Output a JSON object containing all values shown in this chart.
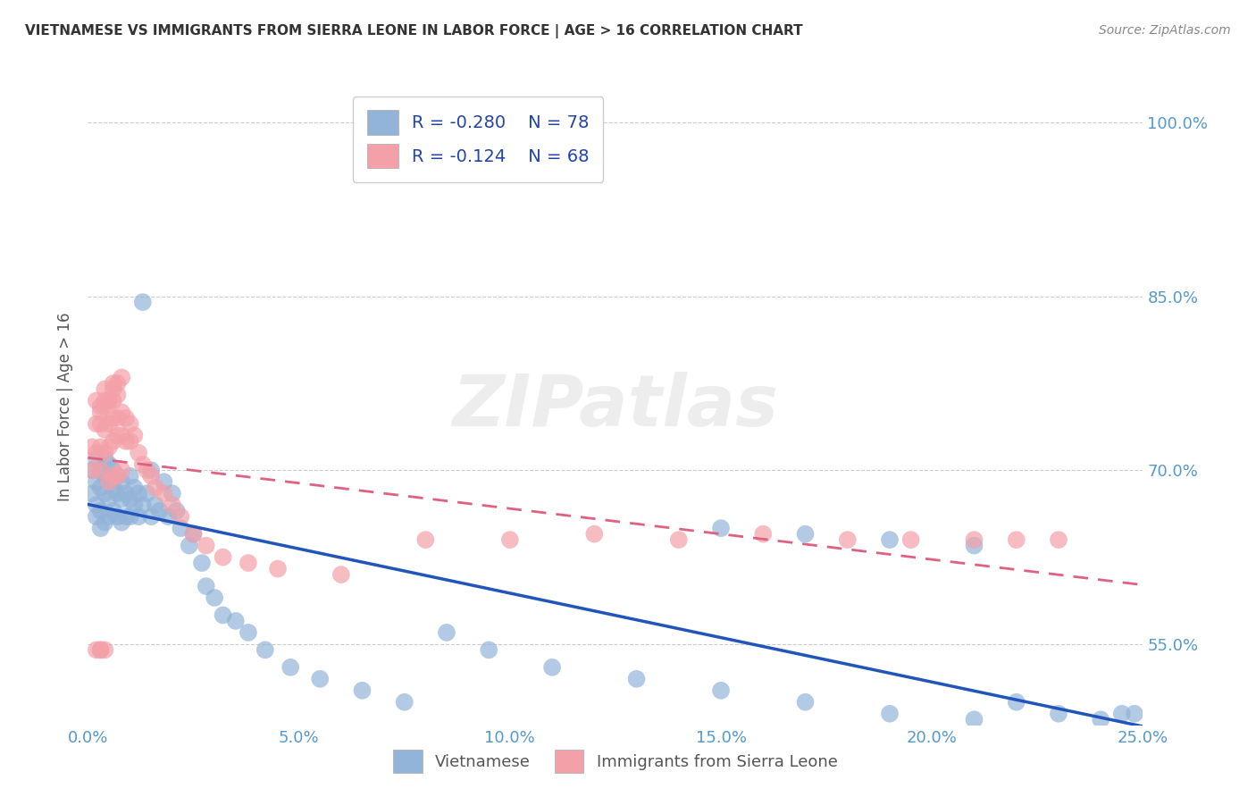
{
  "title": "VIETNAMESE VS IMMIGRANTS FROM SIERRA LEONE IN LABOR FORCE | AGE > 16 CORRELATION CHART",
  "source": "Source: ZipAtlas.com",
  "ylabel_label": "In Labor Force | Age > 16",
  "xlim": [
    0.0,
    0.25
  ],
  "ylim": [
    0.48,
    1.03
  ],
  "xtick_vals": [
    0.0,
    0.05,
    0.1,
    0.15,
    0.2,
    0.25
  ],
  "xtick_labels": [
    "0.0%",
    "5.0%",
    "10.0%",
    "15.0%",
    "20.0%",
    "25.0%"
  ],
  "ytick_vals": [
    0.55,
    0.7,
    0.85,
    1.0
  ],
  "ytick_labels": [
    "55.0%",
    "70.0%",
    "85.0%",
    "100.0%"
  ],
  "legend_blue_label": "Vietnamese",
  "legend_pink_label": "Immigrants from Sierra Leone",
  "R_blue": -0.28,
  "N_blue": 78,
  "R_pink": -0.124,
  "N_pink": 68,
  "blue_color": "#92B4D8",
  "pink_color": "#F4A0A8",
  "blue_line_color": "#2255BB",
  "pink_line_color": "#E06080",
  "tick_color": "#5599CC",
  "watermark": "ZIPatlas",
  "blue_scatter_x": [
    0.001,
    0.001,
    0.002,
    0.002,
    0.002,
    0.002,
    0.003,
    0.003,
    0.003,
    0.003,
    0.004,
    0.004,
    0.004,
    0.004,
    0.005,
    0.005,
    0.005,
    0.005,
    0.006,
    0.006,
    0.006,
    0.007,
    0.007,
    0.007,
    0.008,
    0.008,
    0.008,
    0.009,
    0.009,
    0.01,
    0.01,
    0.01,
    0.011,
    0.011,
    0.012,
    0.012,
    0.013,
    0.013,
    0.014,
    0.015,
    0.015,
    0.016,
    0.017,
    0.018,
    0.019,
    0.02,
    0.021,
    0.022,
    0.024,
    0.025,
    0.027,
    0.028,
    0.03,
    0.032,
    0.035,
    0.038,
    0.042,
    0.048,
    0.055,
    0.065,
    0.075,
    0.085,
    0.095,
    0.11,
    0.13,
    0.15,
    0.17,
    0.19,
    0.21,
    0.22,
    0.23,
    0.24,
    0.245,
    0.248,
    0.15,
    0.17,
    0.19,
    0.21
  ],
  "blue_scatter_y": [
    0.68,
    0.7,
    0.67,
    0.69,
    0.71,
    0.66,
    0.685,
    0.7,
    0.665,
    0.65,
    0.68,
    0.695,
    0.71,
    0.655,
    0.675,
    0.69,
    0.705,
    0.66,
    0.685,
    0.7,
    0.665,
    0.68,
    0.695,
    0.66,
    0.675,
    0.69,
    0.655,
    0.68,
    0.66,
    0.695,
    0.675,
    0.66,
    0.685,
    0.67,
    0.68,
    0.66,
    0.845,
    0.67,
    0.68,
    0.7,
    0.66,
    0.67,
    0.665,
    0.69,
    0.66,
    0.68,
    0.665,
    0.65,
    0.635,
    0.645,
    0.62,
    0.6,
    0.59,
    0.575,
    0.57,
    0.56,
    0.545,
    0.53,
    0.52,
    0.51,
    0.5,
    0.56,
    0.545,
    0.53,
    0.52,
    0.51,
    0.5,
    0.49,
    0.485,
    0.5,
    0.49,
    0.485,
    0.49,
    0.49,
    0.65,
    0.645,
    0.64,
    0.635
  ],
  "pink_scatter_x": [
    0.001,
    0.001,
    0.002,
    0.002,
    0.002,
    0.003,
    0.003,
    0.003,
    0.003,
    0.004,
    0.004,
    0.004,
    0.004,
    0.005,
    0.005,
    0.005,
    0.006,
    0.006,
    0.006,
    0.006,
    0.007,
    0.007,
    0.007,
    0.008,
    0.008,
    0.009,
    0.009,
    0.01,
    0.01,
    0.011,
    0.012,
    0.013,
    0.014,
    0.015,
    0.016,
    0.018,
    0.02,
    0.022,
    0.025,
    0.028,
    0.032,
    0.038,
    0.045,
    0.06,
    0.08,
    0.1,
    0.12,
    0.14,
    0.16,
    0.18,
    0.195,
    0.21,
    0.22,
    0.23,
    0.005,
    0.006,
    0.007,
    0.008,
    0.004,
    0.003,
    0.005,
    0.006,
    0.007,
    0.008,
    0.003,
    0.004,
    0.002,
    0.003
  ],
  "pink_scatter_y": [
    0.7,
    0.72,
    0.715,
    0.74,
    0.76,
    0.72,
    0.74,
    0.755,
    0.7,
    0.715,
    0.735,
    0.755,
    0.77,
    0.72,
    0.74,
    0.76,
    0.725,
    0.745,
    0.76,
    0.775,
    0.73,
    0.745,
    0.765,
    0.73,
    0.75,
    0.725,
    0.745,
    0.725,
    0.74,
    0.73,
    0.715,
    0.705,
    0.7,
    0.695,
    0.685,
    0.68,
    0.67,
    0.66,
    0.645,
    0.635,
    0.625,
    0.62,
    0.615,
    0.61,
    0.64,
    0.64,
    0.645,
    0.64,
    0.645,
    0.64,
    0.64,
    0.64,
    0.64,
    0.64,
    0.76,
    0.77,
    0.775,
    0.78,
    0.76,
    0.75,
    0.69,
    0.695,
    0.695,
    0.7,
    0.545,
    0.545,
    0.545,
    0.545
  ]
}
